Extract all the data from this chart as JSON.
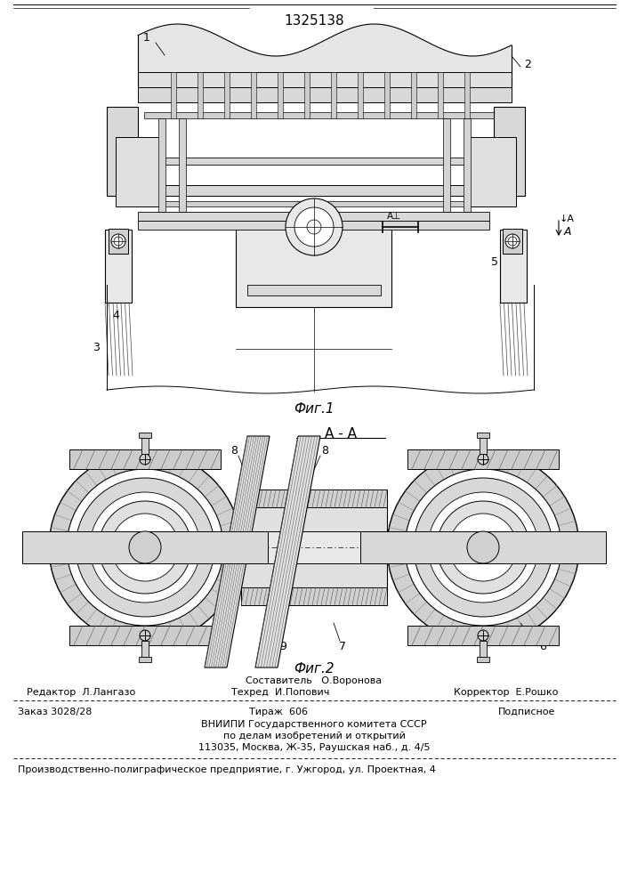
{
  "patent_number": "1325138",
  "fig1_label": "Фиг.1",
  "fig2_label": "Фиг.2",
  "section_label": "А - А",
  "editor_line": "Редактор  Л.Лангазо",
  "composer_line1": "Составитель   О.Воронова",
  "composer_line2": "Техред  И.Попович",
  "corrector_line": "Корректор  Е.Рошко",
  "order_line": "Заказ 3028/28",
  "circulation_line": "Тираж  606",
  "subscription_line": "Подписное",
  "org_line1": "ВНИИПИ Государственного комитета СССР",
  "org_line2": "по делам изобретений и открытий",
  "org_line3": "113035, Москва, Ж-35, Раушская наб., д. 4/5",
  "production_line": "Производственно-полиграфическое предприятие, г. Ужгород, ул. Проектная, 4",
  "bg_color": "#ffffff",
  "text_color": "#000000"
}
